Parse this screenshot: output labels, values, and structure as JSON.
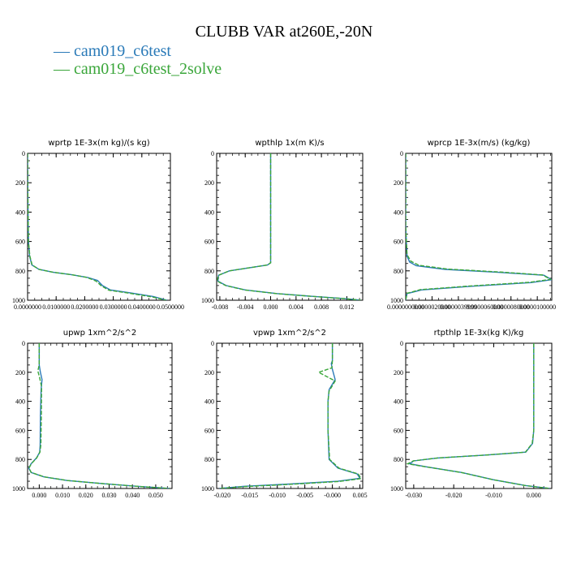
{
  "figure": {
    "title": "CLUBB VAR at260E,-20N",
    "legend": [
      {
        "label": "— cam019_c6test",
        "color": "#2a7ab8"
      },
      {
        "label": "— cam019_c6test_2solve",
        "color": "#3aa63a"
      }
    ]
  },
  "chart_data": [
    {
      "type": "line",
      "title": "wprtp  1E-3x(m kg)/(s kg)",
      "xlim": [
        0,
        0.05
      ],
      "ylim": [
        1000,
        0
      ],
      "xticks": [
        0,
        0.01,
        0.02,
        0.03,
        0.04,
        0.05
      ],
      "xtick_labels": [
        "0.0000000",
        "0.0100000",
        "0.0200000",
        "0.0300000",
        "0.0400000",
        "0.0500000"
      ],
      "yticks": [
        0,
        200,
        400,
        600,
        800,
        1000
      ],
      "series": [
        {
          "name": "cam019_c6test",
          "color": "#2a7ab8",
          "dash": false,
          "x": [
            0,
            0.0001,
            0.0003,
            0.0007,
            0.0015,
            0.004,
            0.009,
            0.015,
            0.021,
            0.0245,
            0.0262,
            0.029,
            0.036,
            0.044,
            0.0488
          ],
          "y": [
            0,
            300,
            600,
            700,
            760,
            790,
            810,
            825,
            845,
            865,
            900,
            930,
            950,
            975,
            1000
          ]
        },
        {
          "name": "cam019_c6test_2solve",
          "color": "#3aa63a",
          "dash": true,
          "x": [
            0,
            0.0001,
            0.0003,
            0.0008,
            0.0016,
            0.004,
            0.009,
            0.015,
            0.0208,
            0.024,
            0.0258,
            0.0285,
            0.0355,
            0.0435,
            0.0485
          ],
          "y": [
            0,
            300,
            600,
            700,
            760,
            790,
            810,
            825,
            845,
            870,
            902,
            932,
            952,
            977,
            1000
          ]
        }
      ]
    },
    {
      "type": "line",
      "title": "wpthlp  1x(m K)/s",
      "xlim": [
        -0.0085,
        0.0145
      ],
      "ylim": [
        1000,
        0
      ],
      "xticks": [
        -0.008,
        -0.004,
        0,
        0.004,
        0.008,
        0.012
      ],
      "xtick_labels": [
        "-0.008",
        "-0.004",
        "0.000",
        "0.004",
        "0.008",
        "0.012"
      ],
      "yticks": [
        0,
        200,
        400,
        600,
        800,
        1000
      ],
      "series": [
        {
          "name": "cam019_c6test",
          "color": "#2a7ab8",
          "dash": false,
          "x": [
            0,
            0,
            0,
            0,
            0,
            -0.0005,
            -0.0035,
            -0.0065,
            -0.0082,
            -0.0083,
            -0.007,
            -0.004,
            0.001,
            0.007,
            0.012,
            0.0142
          ],
          "y": [
            0,
            200,
            500,
            700,
            745,
            760,
            780,
            800,
            830,
            870,
            900,
            930,
            955,
            975,
            990,
            1000
          ]
        },
        {
          "name": "cam019_c6test_2solve",
          "color": "#3aa63a",
          "dash": true,
          "x": [
            0,
            0,
            0,
            0,
            0,
            -0.0005,
            -0.0035,
            -0.0065,
            -0.0082,
            -0.0084,
            -0.0071,
            -0.0041,
            0.0009,
            0.0069,
            0.0119,
            0.0142
          ],
          "y": [
            0,
            200,
            500,
            700,
            745,
            760,
            780,
            800,
            830,
            870,
            900,
            930,
            955,
            975,
            990,
            1000
          ]
        }
      ]
    },
    {
      "type": "line",
      "title": "wprcp  1E-3x(m/s) (kg/kg)",
      "xlim": [
        0,
        1.11e-05
      ],
      "ylim": [
        1000,
        0
      ],
      "xticks": [
        0,
        2e-06,
        4e-06,
        6e-06,
        8e-06,
        1e-05
      ],
      "xtick_labels": [
        "0.0000000000",
        "0.0000020000",
        "0.0000039999",
        "0.0000060000",
        "0.0000080000",
        "0.0000100000"
      ],
      "yticks": [
        0,
        200,
        400,
        600,
        800,
        1000
      ],
      "series": [
        {
          "name": "cam019_c6test",
          "color": "#2a7ab8",
          "dash": false,
          "x": [
            0,
            0,
            1e-07,
            3e-07,
            8e-07,
            3e-06,
            7e-06,
            1.05e-05,
            1.11e-05,
            9.5e-06,
            5e-06,
            1.2e-06,
            1e-07,
            0
          ],
          "y": [
            0,
            500,
            700,
            740,
            765,
            790,
            810,
            830,
            860,
            880,
            905,
            930,
            955,
            1000
          ]
        },
        {
          "name": "cam019_c6test_2solve",
          "color": "#3aa63a",
          "dash": true,
          "x": [
            0,
            0,
            1e-07,
            4e-07,
            1e-06,
            3.2e-06,
            7.2e-06,
            1.04e-05,
            1.1e-05,
            9.4e-06,
            4.9e-06,
            1.1e-06,
            1e-07,
            0
          ],
          "y": [
            0,
            500,
            690,
            735,
            762,
            788,
            808,
            828,
            858,
            878,
            903,
            928,
            953,
            1000
          ]
        }
      ]
    },
    {
      "type": "line",
      "title": "upwp  1xm^2/s^2",
      "xlim": [
        -0.005,
        0.057
      ],
      "ylim": [
        1000,
        0
      ],
      "xticks": [
        0,
        0.01,
        0.02,
        0.03,
        0.04,
        0.05
      ],
      "xtick_labels": [
        "0.000",
        "0.010",
        "0.020",
        "0.030",
        "0.040",
        "0.050"
      ],
      "yticks": [
        0,
        200,
        400,
        600,
        800,
        1000
      ],
      "series": [
        {
          "name": "cam019_c6test",
          "color": "#2a7ab8",
          "dash": false,
          "x": [
            0,
            0,
            0.0005,
            0.0012,
            0.0008,
            0.0005,
            0.0004,
            0.0002,
            -0.0012,
            -0.0035,
            -0.0045,
            -0.0035,
            0.002,
            0.012,
            0.026,
            0.042,
            0.056
          ],
          "y": [
            0,
            150,
            200,
            250,
            320,
            500,
            700,
            750,
            790,
            830,
            860,
            890,
            920,
            945,
            965,
            985,
            1000
          ]
        },
        {
          "name": "cam019_c6test_2solve",
          "color": "#3aa63a",
          "dash": true,
          "x": [
            0,
            0,
            -0.0006,
            0.0002,
            0.001,
            0.0009,
            0.0007,
            0.0003,
            -0.0011,
            -0.0034,
            -0.0044,
            -0.0034,
            0.0021,
            0.0121,
            0.0261,
            0.0421,
            0.056
          ],
          "y": [
            0,
            150,
            190,
            240,
            300,
            500,
            700,
            750,
            790,
            830,
            860,
            890,
            920,
            945,
            965,
            985,
            1000
          ]
        }
      ]
    },
    {
      "type": "line",
      "title": "vpwp  1xm^2/s^2",
      "xlim": [
        -0.021,
        0.0055
      ],
      "ylim": [
        1000,
        0
      ],
      "xticks": [
        -0.02,
        -0.015,
        -0.01,
        -0.005,
        0,
        0.005
      ],
      "xtick_labels": [
        "-0.020",
        "-0.015",
        "-0.010",
        "-0.005",
        "-0.000",
        "0.005"
      ],
      "yticks": [
        0,
        200,
        400,
        600,
        800,
        1000
      ],
      "series": [
        {
          "name": "cam019_c6test",
          "color": "#2a7ab8",
          "dash": false,
          "x": [
            0,
            0,
            -0.0002,
            0,
            0.0005,
            -0.0006,
            -0.0008,
            -0.0008,
            -0.0006,
            0.001,
            0.0045,
            0.005,
            0.001,
            -0.008,
            -0.016,
            -0.0205
          ],
          "y": [
            0,
            120,
            140,
            180,
            250,
            320,
            400,
            600,
            800,
            860,
            900,
            930,
            950,
            970,
            985,
            1000
          ]
        },
        {
          "name": "cam019_c6test_2solve",
          "color": "#3aa63a",
          "dash": true,
          "x": [
            0,
            0,
            -0.0001,
            -0.0025,
            0.0005,
            -0.0006,
            -0.0008,
            -0.0008,
            -0.0005,
            0.0012,
            0.0047,
            0.0052,
            0.0011,
            -0.0079,
            -0.0159,
            -0.0205
          ],
          "y": [
            0,
            120,
            170,
            200,
            260,
            330,
            400,
            600,
            800,
            860,
            900,
            932,
            952,
            972,
            987,
            1000
          ]
        }
      ]
    },
    {
      "type": "line",
      "title": "rtpthlp  1E-3x(kg K)/kg",
      "xlim": [
        -0.032,
        0.0045
      ],
      "ylim": [
        1000,
        0
      ],
      "xticks": [
        -0.03,
        -0.02,
        -0.01,
        0
      ],
      "xtick_labels": [
        "-0.030",
        "-0.020",
        "-0.010",
        "0.000"
      ],
      "yticks": [
        0,
        200,
        400,
        600,
        800,
        1000
      ],
      "series": [
        {
          "name": "cam019_c6test",
          "color": "#2a7ab8",
          "dash": false,
          "x": [
            0,
            0,
            0,
            -0.0003,
            -0.002,
            -0.012,
            -0.024,
            -0.03,
            -0.031,
            -0.027,
            -0.018,
            -0.01,
            -0.002,
            0.004
          ],
          "y": [
            0,
            300,
            600,
            690,
            750,
            770,
            790,
            810,
            830,
            850,
            890,
            940,
            980,
            1000
          ]
        },
        {
          "name": "cam019_c6test_2solve",
          "color": "#3aa63a",
          "dash": true,
          "x": [
            0,
            0,
            0,
            -0.0004,
            -0.0021,
            -0.0121,
            -0.0241,
            -0.0301,
            -0.0315,
            -0.0272,
            -0.0181,
            -0.0101,
            -0.0021,
            0.004
          ],
          "y": [
            0,
            300,
            600,
            690,
            750,
            770,
            790,
            810,
            830,
            850,
            890,
            940,
            980,
            1000
          ]
        }
      ]
    }
  ]
}
